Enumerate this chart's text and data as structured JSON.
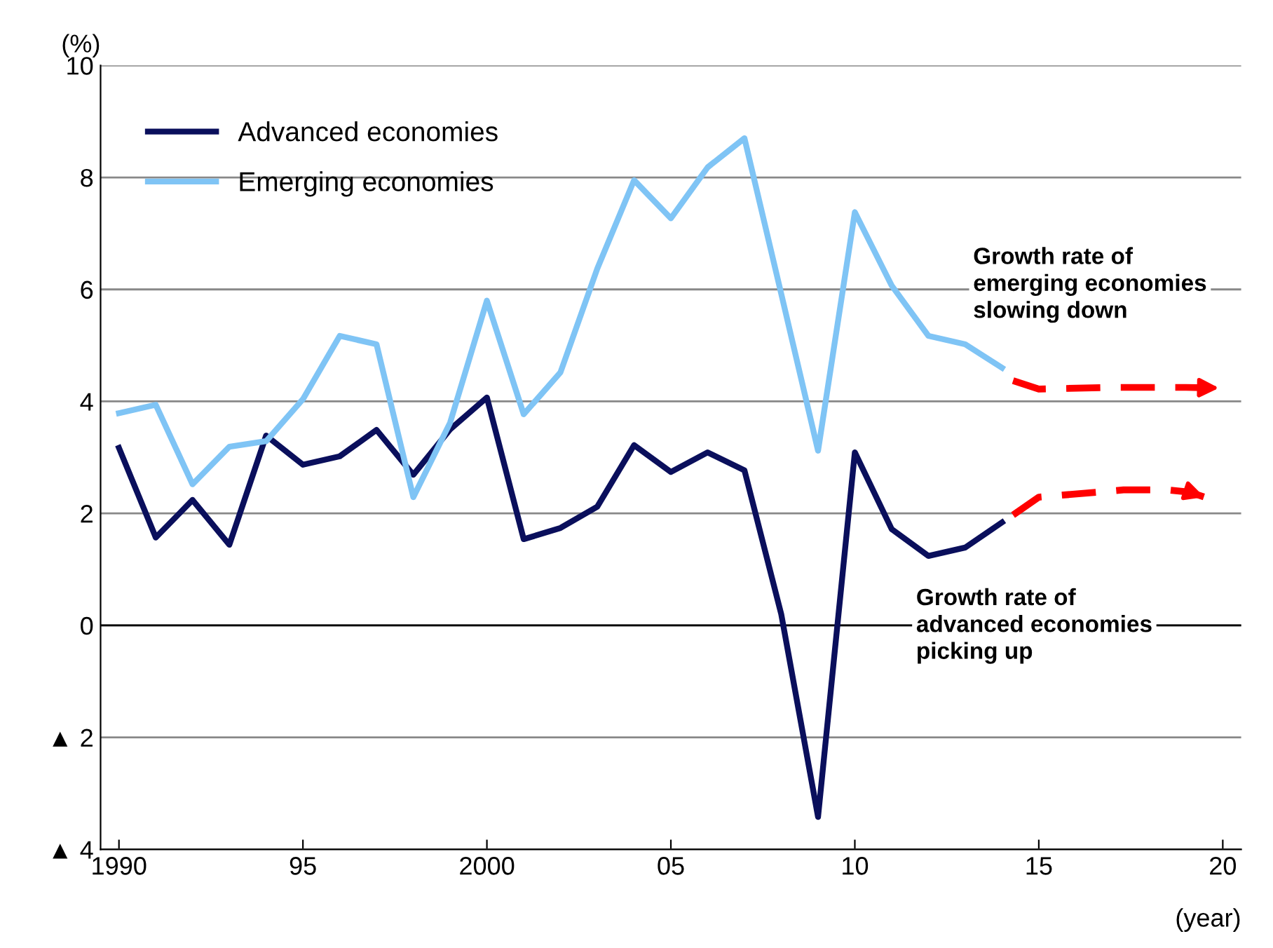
{
  "chart_data": {
    "type": "line",
    "ylabel": "(%)",
    "xlabel": "(year)",
    "x": [
      1990,
      1991,
      1992,
      1993,
      1994,
      1995,
      1996,
      1997,
      1998,
      1999,
      2000,
      2001,
      2002,
      2003,
      2004,
      2005,
      2006,
      2007,
      2008,
      2009,
      2010,
      2011,
      2012,
      2013,
      2014
    ],
    "series": [
      {
        "name": "Advanced economies",
        "color": "#0a0f5c",
        "values": [
          3.17,
          1.57,
          2.24,
          1.44,
          3.39,
          2.87,
          3.02,
          3.49,
          2.69,
          3.5,
          4.07,
          1.54,
          1.74,
          2.12,
          3.22,
          2.74,
          3.09,
          2.77,
          0.2,
          -3.42,
          3.09,
          1.72,
          1.24,
          1.39,
          1.84
        ]
      },
      {
        "name": "Emerging economies",
        "color": "#7fc4f5",
        "values": [
          3.79,
          3.94,
          2.52,
          3.19,
          3.29,
          4.04,
          5.17,
          5.02,
          2.29,
          3.62,
          5.8,
          3.77,
          4.52,
          6.37,
          7.95,
          7.27,
          8.18,
          8.7,
          5.92,
          3.12,
          7.38,
          6.07,
          5.17,
          5.02,
          4.6
        ]
      },
      {
        "color": "#ff0000",
        "line_style": "dashed",
        "x": [
          2014.3,
          2015.0,
          2017.3,
          2018.5,
          2019.1,
          2019.6
        ],
        "values": [
          1.97,
          2.29,
          2.42,
          2.42,
          2.38,
          2.27
        ]
      },
      {
        "color": "#ff0000",
        "line_style": "dashed",
        "x": [
          2014.3,
          2015.0,
          2017.0,
          2019.0,
          2020.0
        ],
        "values": [
          4.37,
          4.22,
          4.25,
          4.25,
          4.24
        ]
      }
    ],
    "xlim": [
      1989.5,
      2020.5
    ],
    "xticks": [
      1990,
      {
        "value": 1995,
        "label": "95"
      },
      2000,
      {
        "value": 2005,
        "label": "05"
      },
      {
        "value": 2010,
        "label": "10"
      },
      {
        "value": 2015,
        "label": "15"
      },
      {
        "value": 2020,
        "label": "20"
      }
    ],
    "ylim": [
      -4,
      10
    ],
    "yticks": [
      {
        "value": -4,
        "label": "▲ 4"
      },
      {
        "value": -2,
        "label": "▲ 2"
      },
      0,
      2,
      4,
      6,
      8,
      10
    ],
    "grid": "y",
    "legend": "top left",
    "ref_lines": [
      {
        "axis": "y",
        "value": 0,
        "color": "#000000"
      }
    ],
    "annotations": [
      "Growth rate of\nemerging economies\nslowing down",
      "Growth rate of\nadvanced economies\npicking up"
    ]
  }
}
